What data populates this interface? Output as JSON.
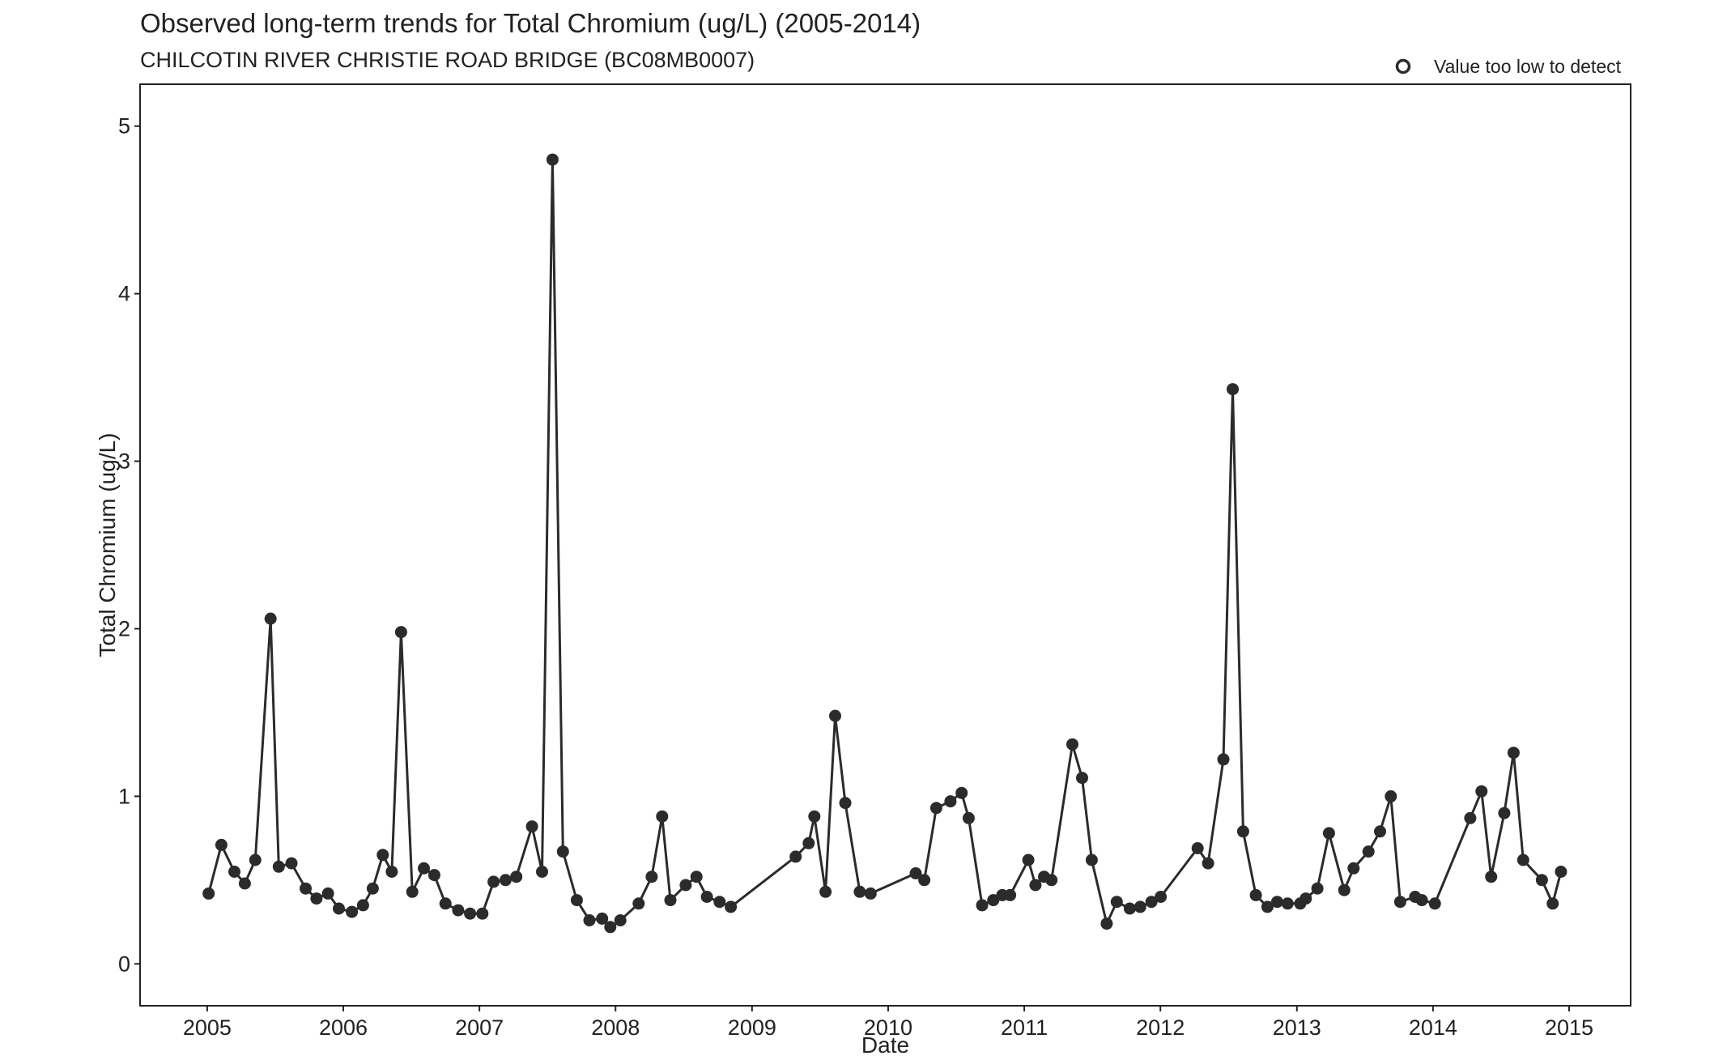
{
  "chart_data": {
    "type": "line",
    "title": "Observed long-term trends for Total Chromium (ug/L) (2005-2014)",
    "subtitle": "CHILCOTIN RIVER CHRISTIE ROAD BRIDGE (BC08MB0007)",
    "xlabel": "Date",
    "ylabel": "Total Chromium (ug/L)",
    "x_ticks": [
      "2005",
      "2006",
      "2007",
      "2008",
      "2009",
      "2010",
      "2011",
      "2012",
      "2013",
      "2014",
      "2015"
    ],
    "y_ticks": [
      "0",
      "1",
      "2",
      "3",
      "4",
      "5"
    ],
    "xlim": [
      "2004-07-05",
      "2015-06-15"
    ],
    "ylim": [
      -0.25,
      5.25
    ],
    "grid": false,
    "legend_position": "top-right",
    "legend": {
      "label": "Value too low to detect",
      "marker": "open-circle"
    },
    "colors": {
      "line": "#2b2b2b",
      "point": "#2b2b2b"
    },
    "series": [
      {
        "x": [
          "2005-01-05",
          "2005-02-08",
          "2005-03-15",
          "2005-04-12",
          "2005-05-10",
          "2005-06-20",
          "2005-07-12",
          "2005-08-15",
          "2005-09-22",
          "2005-10-21",
          "2005-11-21",
          "2005-12-20",
          "2006-01-24",
          "2006-02-23",
          "2006-03-21",
          "2006-04-17",
          "2006-05-11",
          "2006-06-05",
          "2006-07-05",
          "2006-08-05",
          "2006-09-02",
          "2006-10-02",
          "2006-11-05",
          "2006-12-07",
          "2007-01-09",
          "2007-02-08",
          "2007-03-12",
          "2007-04-10",
          "2007-05-22",
          "2007-06-18",
          "2007-07-16",
          "2007-08-13",
          "2007-09-19",
          "2007-10-23",
          "2007-11-26",
          "2007-12-18",
          "2008-01-14",
          "2008-03-03",
          "2008-04-07",
          "2008-05-05",
          "2008-05-27",
          "2008-07-07",
          "2008-08-05",
          "2008-09-02",
          "2008-10-06",
          "2008-11-05",
          "2009-04-28",
          "2009-06-02",
          "2009-06-17",
          "2009-07-17",
          "2009-08-12",
          "2009-09-08",
          "2009-10-17",
          "2009-11-15",
          "2010-03-16",
          "2010-04-08",
          "2010-05-10",
          "2010-06-17",
          "2010-07-17",
          "2010-08-05",
          "2010-09-10",
          "2010-10-10",
          "2010-11-03",
          "2010-11-24",
          "2011-01-12",
          "2011-01-31",
          "2011-02-23",
          "2011-03-15",
          "2011-05-10",
          "2011-06-05",
          "2011-07-01",
          "2011-08-10",
          "2011-09-06",
          "2011-10-11",
          "2011-11-08",
          "2011-12-08",
          "2012-01-02",
          "2012-04-10",
          "2012-05-08",
          "2012-06-18",
          "2012-07-13",
          "2012-08-10",
          "2012-09-13",
          "2012-10-14",
          "2012-11-09",
          "2012-12-07",
          "2013-01-10",
          "2013-01-25",
          "2013-02-25",
          "2013-03-28",
          "2013-05-08",
          "2013-06-02",
          "2013-07-12",
          "2013-08-12",
          "2013-09-10",
          "2013-10-05",
          "2013-11-14",
          "2013-12-02",
          "2014-01-06",
          "2014-04-11",
          "2014-05-11",
          "2014-06-06",
          "2014-07-11",
          "2014-08-05",
          "2014-08-31",
          "2014-10-20",
          "2014-11-18",
          "2014-12-10"
        ],
        "y": [
          0.42,
          0.71,
          0.55,
          0.48,
          0.62,
          2.06,
          0.58,
          0.6,
          0.45,
          0.39,
          0.42,
          0.33,
          0.31,
          0.35,
          0.45,
          0.65,
          0.55,
          1.98,
          0.43,
          0.57,
          0.53,
          0.36,
          0.32,
          0.3,
          0.3,
          0.49,
          0.5,
          0.52,
          0.82,
          0.55,
          4.8,
          0.67,
          0.38,
          0.26,
          0.27,
          0.22,
          0.26,
          0.36,
          0.52,
          0.88,
          0.38,
          0.47,
          0.52,
          0.4,
          0.37,
          0.34,
          0.64,
          0.72,
          0.88,
          0.43,
          1.48,
          0.96,
          0.43,
          0.42,
          0.54,
          0.5,
          0.93,
          0.97,
          1.02,
          0.87,
          0.35,
          0.38,
          0.41,
          0.41,
          0.62,
          0.47,
          0.52,
          0.5,
          1.31,
          1.11,
          0.62,
          0.24,
          0.37,
          0.33,
          0.34,
          0.37,
          0.4,
          0.69,
          0.6,
          1.22,
          3.43,
          0.79,
          0.41,
          0.34,
          0.37,
          0.36,
          0.36,
          0.39,
          0.45,
          0.78,
          0.44,
          0.57,
          0.67,
          0.79,
          1.0,
          0.37,
          0.4,
          0.38,
          0.36,
          0.87,
          1.03,
          0.52,
          0.9,
          1.26,
          0.62,
          0.5,
          0.36,
          0.55
        ]
      }
    ]
  }
}
